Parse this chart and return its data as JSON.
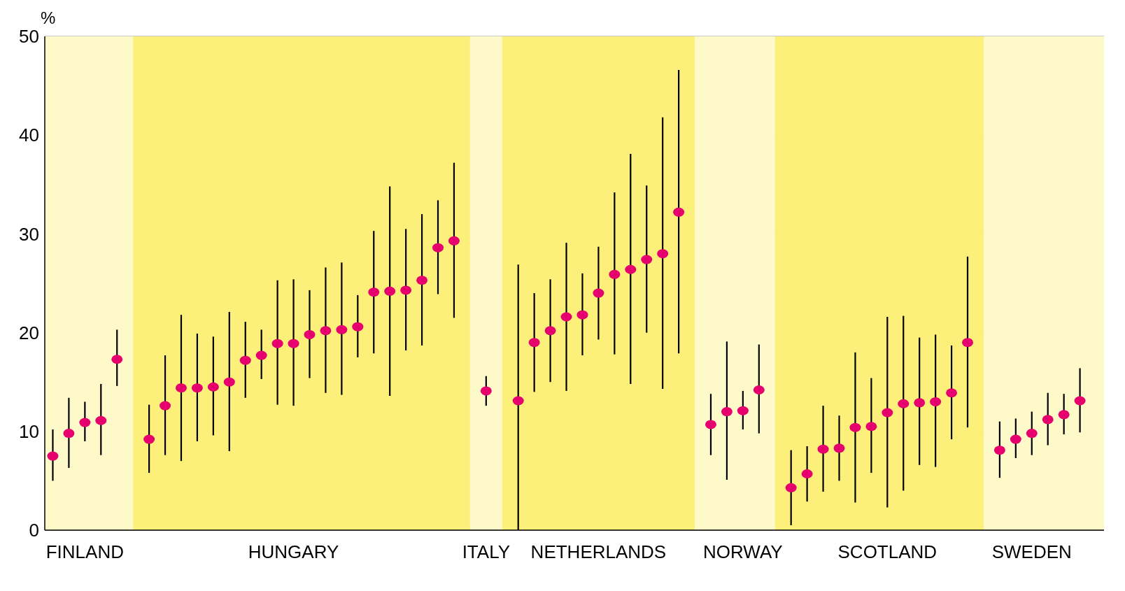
{
  "chart_data": {
    "type": "scatter",
    "ylabel": "%",
    "ylim": [
      0,
      50
    ],
    "yticks": [
      0,
      10,
      20,
      30,
      40,
      50
    ],
    "grid": "y",
    "legend": false,
    "marker": "circle",
    "categories": [
      null,
      null,
      "FINLAND",
      null,
      null,
      null,
      null,
      null,
      null,
      null,
      null,
      null,
      null,
      null,
      null,
      "HUNGARY",
      null,
      null,
      null,
      null,
      null,
      null,
      null,
      null,
      null,
      null,
      null,
      "ITALY",
      null,
      null,
      null,
      null,
      null,
      null,
      "NETHERLANDS",
      null,
      null,
      null,
      null,
      null,
      null,
      null,
      null,
      "NORWAY",
      null,
      null,
      null,
      null,
      null,
      null,
      null,
      null,
      "SCOTLAND",
      null,
      null,
      null,
      null,
      null,
      null,
      null,
      null,
      "SWEDEN",
      null,
      null,
      null,
      null
    ],
    "series": [
      {
        "color": "#e5006e",
        "values": [
          7.5,
          9.8,
          10.9,
          11.1,
          17.3,
          null,
          9.2,
          12.6,
          14.4,
          14.4,
          14.5,
          15.0,
          17.2,
          17.7,
          18.9,
          18.9,
          19.8,
          20.2,
          20.3,
          20.6,
          24.1,
          24.2,
          24.3,
          25.3,
          28.6,
          29.3,
          null,
          14.1,
          null,
          13.1,
          19.0,
          20.2,
          21.6,
          21.8,
          24.0,
          25.9,
          26.4,
          27.4,
          28.0,
          32.2,
          null,
          10.7,
          12.0,
          12.1,
          14.2,
          null,
          4.3,
          5.7,
          8.2,
          8.3,
          10.4,
          10.5,
          11.9,
          12.8,
          12.9,
          13.0,
          13.9,
          19.0,
          null,
          8.1,
          9.2,
          9.8,
          11.2,
          11.7,
          13.1,
          null
        ],
        "errors": [
          [
            5.0,
            10.2
          ],
          [
            6.3,
            13.4
          ],
          [
            9.0,
            13.0
          ],
          [
            7.6,
            14.8
          ],
          [
            14.6,
            20.3
          ],
          null,
          [
            5.8,
            12.7
          ],
          [
            7.6,
            17.7
          ],
          [
            7.0,
            21.8
          ],
          [
            9.0,
            19.9
          ],
          [
            9.6,
            19.6
          ],
          [
            8.0,
            22.1
          ],
          [
            13.4,
            21.1
          ],
          [
            15.3,
            20.3
          ],
          [
            12.7,
            25.3
          ],
          [
            12.6,
            25.4
          ],
          [
            15.4,
            24.3
          ],
          [
            13.9,
            26.6
          ],
          [
            13.7,
            27.1
          ],
          [
            17.5,
            23.8
          ],
          [
            17.9,
            30.3
          ],
          [
            13.6,
            34.8
          ],
          [
            18.2,
            30.5
          ],
          [
            18.7,
            32.0
          ],
          [
            23.9,
            33.4
          ],
          [
            21.5,
            37.2
          ],
          null,
          [
            12.6,
            15.6
          ],
          null,
          [
            0,
            26.9
          ],
          [
            14.0,
            24.0
          ],
          [
            15.0,
            25.4
          ],
          [
            14.1,
            29.1
          ],
          [
            17.7,
            26.0
          ],
          [
            19.3,
            28.7
          ],
          [
            17.8,
            34.2
          ],
          [
            14.8,
            38.1
          ],
          [
            20.0,
            34.9
          ],
          [
            14.3,
            41.8
          ],
          [
            17.9,
            46.6
          ],
          null,
          [
            7.6,
            13.8
          ],
          [
            5.1,
            19.1
          ],
          [
            10.2,
            14.1
          ],
          [
            9.8,
            18.8
          ],
          null,
          [
            0.5,
            8.1
          ],
          [
            2.9,
            8.5
          ],
          [
            3.9,
            12.6
          ],
          [
            5.0,
            11.6
          ],
          [
            2.8,
            18.0
          ],
          [
            5.8,
            15.4
          ],
          [
            2.3,
            21.6
          ],
          [
            4.0,
            21.7
          ],
          [
            6.6,
            19.5
          ],
          [
            6.4,
            19.8
          ],
          [
            9.2,
            18.7
          ],
          [
            10.4,
            27.7
          ],
          null,
          [
            5.3,
            11.0
          ],
          [
            7.3,
            11.3
          ],
          [
            7.6,
            12.0
          ],
          [
            8.6,
            13.9
          ],
          [
            9.7,
            13.8
          ],
          [
            9.9,
            16.4
          ],
          null
        ]
      }
    ]
  }
}
